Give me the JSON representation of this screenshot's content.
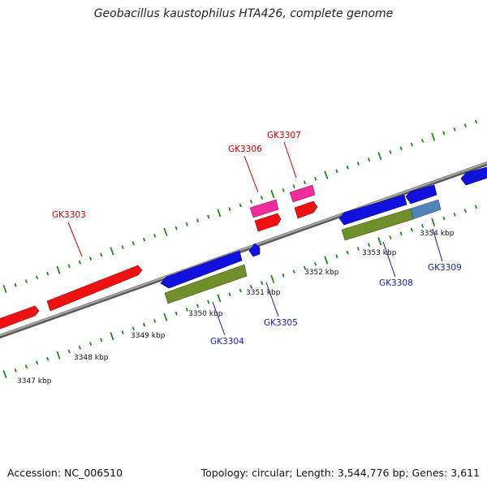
{
  "title": "Geobacillus kaustophilus HTA426, complete genome",
  "footer": {
    "accession": "Accession: NC_006510",
    "summary": "Topology: circular; Length: 3,544,776 bp; Genes: 3,611"
  },
  "ticks": [
    {
      "label": "3347 kbp"
    },
    {
      "label": "3348 kbp"
    },
    {
      "label": "3349 kbp"
    },
    {
      "label": "3350 kbp"
    },
    {
      "label": "3351 kbp"
    },
    {
      "label": "3352 kbp"
    },
    {
      "label": "3353 kbp"
    },
    {
      "label": "3354 kbp"
    }
  ],
  "genes": [
    {
      "name": "GK3303",
      "strand": "forward"
    },
    {
      "name": "GK3304",
      "strand": "reverse"
    },
    {
      "name": "GK3305",
      "strand": "reverse"
    },
    {
      "name": "GK3306",
      "strand": "forward"
    },
    {
      "name": "GK3307",
      "strand": "forward"
    },
    {
      "name": "GK3308",
      "strand": "reverse"
    },
    {
      "name": "GK3309",
      "strand": "reverse"
    }
  ],
  "colors": {
    "forward_gene": "#ee1111",
    "reverse_gene": "#1111dd",
    "rna_pink": "#ee2d9a",
    "protein_green": "#6f8f2a",
    "protein_teal": "#4f84b8",
    "backbone": "#7a7a7a",
    "tick_green": "#1a8a1a",
    "label_red": "#cc0000",
    "label_blue": "#1a1aa6"
  }
}
